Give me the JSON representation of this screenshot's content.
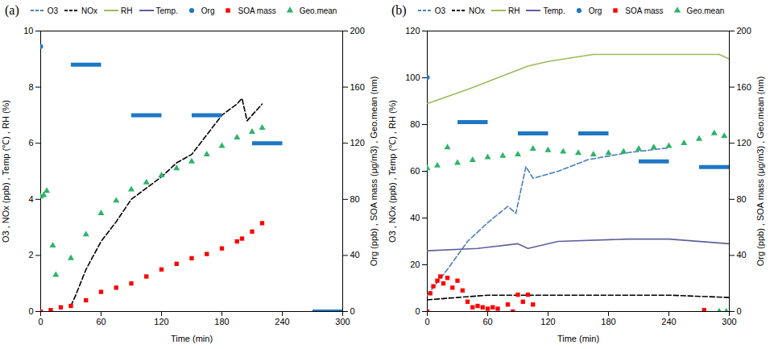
{
  "chart_data": [
    {
      "type": "line",
      "title": "(a)",
      "xlabel": "Time (min)",
      "ylabel": "O3 , NOx (ppb) , Temp (℃) , RH (%)",
      "y2label": "Org (ppb) , SOA mass (μg/m3) , Geo.mean (nm)",
      "xlim": [
        0,
        300
      ],
      "xticks": [
        0,
        60,
        120,
        180,
        240,
        300
      ],
      "ylim": [
        0,
        10
      ],
      "yticks": [
        0,
        2,
        4,
        6,
        8,
        10
      ],
      "y2lim": [
        0,
        200
      ],
      "y2ticks": [
        0,
        40,
        80,
        120,
        160,
        200
      ],
      "series": [
        {
          "name": "O3",
          "type": "line",
          "color": "#4a7ebb",
          "line_style": "dashed",
          "x": [],
          "values": []
        },
        {
          "name": "NOx",
          "type": "line",
          "color": "#000000",
          "line_style": "dashed",
          "x": [
            30,
            35,
            45,
            60,
            75,
            90,
            105,
            120,
            135,
            150,
            165,
            180,
            195,
            200,
            205,
            210,
            220
          ],
          "values": [
            0.2,
            0.6,
            1.5,
            2.5,
            3.2,
            4.0,
            4.4,
            4.8,
            5.3,
            5.6,
            6.3,
            7.0,
            7.4,
            7.6,
            6.8,
            7.0,
            7.4
          ]
        },
        {
          "name": "RH",
          "type": "line",
          "color": "#9bbb59",
          "line_style": "solid",
          "x": [],
          "values": []
        },
        {
          "name": "Temp.",
          "type": "line",
          "color": "#5f5f9f",
          "line_style": "solid",
          "x": [],
          "values": []
        },
        {
          "name": "Org",
          "type": "segment",
          "axis": "y2",
          "color": "#1f77c4",
          "marker": "circle",
          "x_start": [
            0,
            30,
            90,
            150,
            210,
            270
          ],
          "x_end": [
            0,
            60,
            120,
            180,
            240,
            300
          ],
          "values": [
            189,
            176,
            140,
            140,
            120,
            0
          ]
        },
        {
          "name": "SOA mass",
          "type": "scatter",
          "axis": "y2",
          "color": "#ff0000",
          "marker": "square",
          "x": [
            0,
            10,
            20,
            30,
            45,
            60,
            75,
            90,
            105,
            120,
            135,
            150,
            165,
            180,
            195,
            200,
            210,
            220
          ],
          "values": [
            0,
            1,
            3,
            4,
            8,
            14,
            17,
            20,
            25,
            30,
            34,
            38,
            41,
            45,
            50,
            52,
            57,
            63
          ]
        },
        {
          "name": "Geo.mean",
          "type": "scatter",
          "axis": "y2",
          "color": "#2db36a",
          "marker": "triangle",
          "x": [
            0,
            3,
            6,
            12,
            15,
            30,
            45,
            60,
            75,
            90,
            105,
            120,
            135,
            150,
            165,
            180,
            195,
            210,
            220
          ],
          "values": [
            82,
            83,
            86,
            47,
            26,
            38,
            55,
            70,
            79,
            87,
            92,
            97,
            102,
            107,
            112,
            118,
            124,
            128,
            131
          ]
        }
      ]
    },
    {
      "type": "line",
      "title": "(b)",
      "xlabel": "Time (min)",
      "ylabel": "O3 , NOx (ppb) , Temp (℃) , RH (%)",
      "y2label": "Org (ppb) , SOA mass (μg/m3) , Geo.mean (nm)",
      "xlim": [
        0,
        300
      ],
      "xticks": [
        0,
        60,
        120,
        180,
        240,
        300
      ],
      "ylim": [
        0,
        120
      ],
      "yticks": [
        0,
        20,
        40,
        60,
        80,
        100,
        120
      ],
      "y2lim": [
        0,
        200
      ],
      "y2ticks": [
        0,
        40,
        80,
        120,
        160,
        200
      ],
      "series": [
        {
          "name": "O3",
          "type": "line",
          "color": "#4a7ebb",
          "line_style": "dashed",
          "x": [
            0,
            20,
            40,
            60,
            80,
            88,
            98,
            105,
            130,
            160,
            200,
            240
          ],
          "values": [
            7,
            18,
            30,
            38,
            45,
            42,
            62,
            57,
            60,
            65,
            68,
            70
          ]
        },
        {
          "name": "NOx",
          "type": "line",
          "color": "#000000",
          "line_style": "dashed",
          "x": [
            0,
            30,
            60,
            120,
            180,
            240,
            300
          ],
          "values": [
            5,
            6,
            7,
            7,
            7,
            7,
            6
          ]
        },
        {
          "name": "RH",
          "type": "line",
          "color": "#9bbb59",
          "line_style": "solid",
          "x": [
            0,
            40,
            70,
            100,
            120,
            165,
            290,
            300
          ],
          "values": [
            89,
            95,
            100,
            105,
            107,
            110,
            110,
            108
          ]
        },
        {
          "name": "Temp.",
          "type": "line",
          "color": "#5f5f9f",
          "line_style": "solid",
          "x": [
            0,
            50,
            90,
            100,
            130,
            200,
            240,
            300
          ],
          "values": [
            26,
            27,
            29,
            27,
            30,
            31,
            31,
            29
          ]
        },
        {
          "name": "Org",
          "type": "segment",
          "axis": "y2",
          "color": "#1f77c4",
          "marker": "circle",
          "x_start": [
            0,
            30,
            90,
            150,
            210,
            270
          ],
          "x_end": [
            0,
            60,
            120,
            180,
            240,
            300
          ],
          "values": [
            167,
            135,
            127,
            127,
            107,
            103
          ]
        },
        {
          "name": "SOA mass",
          "type": "scatter",
          "axis": "y2",
          "color": "#ff0000",
          "marker": "square",
          "x": [
            0,
            3,
            6,
            10,
            13,
            16,
            20,
            25,
            30,
            35,
            40,
            45,
            50,
            55,
            60,
            65,
            70,
            80,
            85,
            90,
            95,
            100,
            105,
            275
          ],
          "values": [
            0,
            13,
            18,
            22,
            25,
            20,
            24,
            17,
            22,
            15,
            7,
            3,
            4,
            3,
            2,
            3,
            2,
            5,
            0,
            12,
            7,
            12,
            5,
            1
          ]
        },
        {
          "name": "Geo.mean",
          "type": "scatter",
          "axis": "y2",
          "color": "#2db36a",
          "marker": "triangle",
          "x": [
            0,
            10,
            20,
            30,
            45,
            60,
            75,
            90,
            105,
            120,
            135,
            150,
            165,
            180,
            195,
            210,
            225,
            240,
            255,
            270,
            285,
            290,
            295,
            297
          ],
          "values": [
            102,
            104,
            117,
            106,
            108,
            110,
            111,
            112,
            116,
            115,
            114,
            113,
            112,
            113,
            114,
            116,
            117,
            118,
            120,
            123,
            127,
            0,
            125,
            0
          ]
        }
      ]
    }
  ]
}
